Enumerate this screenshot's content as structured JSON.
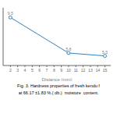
{
  "chart_data": {
    "type": "line",
    "x": [
      2,
      10,
      15
    ],
    "values": [
      9.5,
      5.8,
      5.5
    ],
    "xlabel": "Distance (mm)",
    "xlim": [
      1,
      15.8
    ],
    "xticks": [
      2,
      3,
      4,
      5,
      6,
      7,
      8,
      9,
      10,
      11,
      12,
      13,
      14,
      15
    ],
    "ylim": [
      4.5,
      10.5
    ],
    "yticks": [],
    "grid": false,
    "data_labels": true,
    "tick_labels": "x",
    "marker": "circle",
    "annotations": [
      "Fig. 3. Hardness properties of fresh ​kendu​ f",
      "at 66.17 ±1.83 %.( db.)  moisture  content."
    ]
  }
}
